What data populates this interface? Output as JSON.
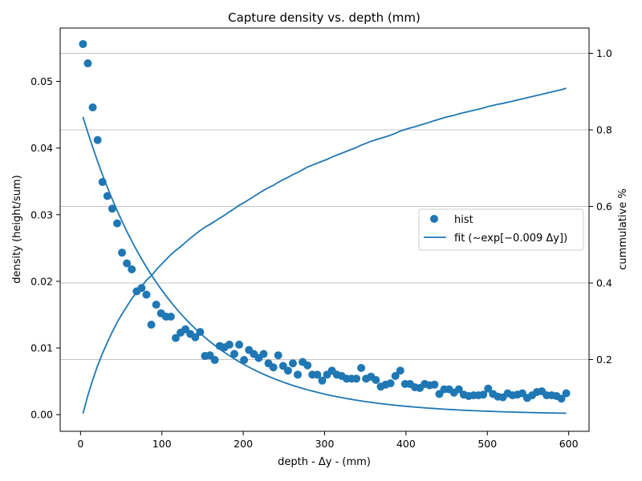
{
  "chart_data": {
    "type": "scatter",
    "title": "Capture density vs. depth (mm)",
    "xlabel": "depth - Δy - (mm)",
    "ylabel": "density (height/sum)",
    "y2label": "cummulative %",
    "xlim": [
      -25,
      625
    ],
    "ylim": [
      -0.0025,
      0.058
    ],
    "y2lim": [
      0.0125,
      1.066
    ],
    "xticks": [
      "0",
      "100",
      "200",
      "300",
      "400",
      "500",
      "600"
    ],
    "xtick_values": [
      0,
      100,
      200,
      300,
      400,
      500,
      600
    ],
    "yticks": [
      "0.00",
      "0.01",
      "0.02",
      "0.03",
      "0.04",
      "0.05"
    ],
    "ytick_values": [
      0,
      0.01,
      0.02,
      0.03,
      0.04,
      0.05
    ],
    "y2ticks": [
      "0.2",
      "0.4",
      "0.6",
      "0.8",
      "1.0"
    ],
    "y2tick_values": [
      0.2,
      0.4,
      0.6,
      0.8,
      1.0
    ],
    "grid": "horizontal lines at right-axis ticks",
    "legend_placement": "center-right",
    "color": "#1f77b4",
    "series": [
      {
        "name": "hist",
        "type": "scatter",
        "x": [
          3,
          9,
          15,
          21,
          27,
          33,
          39,
          45,
          51,
          57,
          63,
          69,
          75,
          81,
          87,
          93,
          99,
          105,
          111,
          117,
          123,
          129,
          135,
          141,
          147,
          153,
          159,
          165,
          171,
          177,
          183,
          189,
          195,
          201,
          207,
          213,
          219,
          225,
          231,
          237,
          243,
          249,
          255,
          261,
          267,
          273,
          279,
          285,
          291,
          297,
          303,
          309,
          315,
          321,
          327,
          333,
          339,
          345,
          351,
          357,
          363,
          369,
          375,
          381,
          387,
          393,
          399,
          405,
          411,
          417,
          423,
          429,
          435,
          441,
          447,
          453,
          459,
          465,
          471,
          477,
          483,
          489,
          495,
          501,
          507,
          513,
          519,
          525,
          531,
          537,
          543,
          549,
          555,
          561,
          567,
          573,
          579,
          585,
          591,
          597
        ],
        "y": [
          0.0556,
          0.0527,
          0.0461,
          0.0412,
          0.0349,
          0.0328,
          0.0309,
          0.0287,
          0.0243,
          0.0227,
          0.0218,
          0.0185,
          0.019,
          0.018,
          0.0135,
          0.0165,
          0.0152,
          0.0147,
          0.0147,
          0.0115,
          0.0123,
          0.0128,
          0.0121,
          0.0116,
          0.0124,
          0.0088,
          0.0089,
          0.0082,
          0.0103,
          0.0101,
          0.0105,
          0.0091,
          0.0105,
          0.0082,
          0.0097,
          0.0091,
          0.0085,
          0.0091,
          0.0077,
          0.0071,
          0.0089,
          0.0073,
          0.0066,
          0.0077,
          0.006,
          0.0079,
          0.0074,
          0.006,
          0.006,
          0.0051,
          0.006,
          0.0066,
          0.006,
          0.0058,
          0.0054,
          0.0054,
          0.0054,
          0.007,
          0.0054,
          0.0057,
          0.0052,
          0.0042,
          0.0045,
          0.0047,
          0.0058,
          0.0066,
          0.0046,
          0.0046,
          0.0041,
          0.004,
          0.0046,
          0.0044,
          0.0045,
          0.0031,
          0.0038,
          0.0038,
          0.0033,
          0.0038,
          0.003,
          0.0028,
          0.0029,
          0.0029,
          0.003,
          0.0039,
          0.0031,
          0.0027,
          0.0026,
          0.0032,
          0.0029,
          0.003,
          0.0032,
          0.0025,
          0.0029,
          0.0034,
          0.0035,
          0.0029,
          0.0029,
          0.0028,
          0.0024,
          0.0032
        ]
      },
      {
        "name": "fit (∼exp[−0.009 Δy])",
        "type": "line",
        "amplitude": 0.0459,
        "rate": 0.009,
        "x_range": [
          3,
          597
        ]
      },
      {
        "type": "line",
        "axis": "right",
        "x": [
          3,
          9,
          15,
          21,
          27,
          33,
          39,
          45,
          51,
          57,
          63,
          69,
          75,
          81,
          87,
          93,
          99,
          105,
          111,
          117,
          123,
          129,
          135,
          141,
          147,
          153,
          159,
          165,
          171,
          177,
          183,
          189,
          195,
          201,
          207,
          213,
          219,
          225,
          231,
          237,
          243,
          249,
          255,
          261,
          267,
          273,
          279,
          285,
          291,
          297,
          303,
          309,
          315,
          321,
          327,
          333,
          339,
          345,
          351,
          357,
          363,
          369,
          375,
          381,
          387,
          393,
          399,
          405,
          411,
          417,
          423,
          429,
          435,
          441,
          447,
          453,
          459,
          465,
          471,
          477,
          483,
          489,
          495,
          501,
          507,
          513,
          519,
          525,
          531,
          537,
          543,
          549,
          555,
          561,
          567,
          573,
          579,
          585,
          591,
          597
        ],
        "y": [
          0.059,
          0.106,
          0.147,
          0.184,
          0.216,
          0.245,
          0.272,
          0.297,
          0.319,
          0.339,
          0.359,
          0.376,
          0.391,
          0.407,
          0.419,
          0.434,
          0.448,
          0.461,
          0.474,
          0.485,
          0.495,
          0.506,
          0.517,
          0.527,
          0.537,
          0.546,
          0.553,
          0.561,
          0.569,
          0.577,
          0.586,
          0.594,
          0.603,
          0.61,
          0.618,
          0.626,
          0.634,
          0.642,
          0.649,
          0.655,
          0.663,
          0.67,
          0.676,
          0.683,
          0.689,
          0.696,
          0.703,
          0.708,
          0.713,
          0.718,
          0.723,
          0.729,
          0.734,
          0.739,
          0.744,
          0.749,
          0.754,
          0.76,
          0.765,
          0.77,
          0.774,
          0.778,
          0.782,
          0.786,
          0.791,
          0.797,
          0.801,
          0.805,
          0.808,
          0.812,
          0.816,
          0.82,
          0.824,
          0.828,
          0.832,
          0.835,
          0.838,
          0.842,
          0.845,
          0.848,
          0.851,
          0.854,
          0.857,
          0.861,
          0.864,
          0.867,
          0.869,
          0.872,
          0.875,
          0.878,
          0.881,
          0.884,
          0.887,
          0.89,
          0.893,
          0.896,
          0.899,
          0.902,
          0.905,
          0.909
        ]
      }
    ]
  }
}
